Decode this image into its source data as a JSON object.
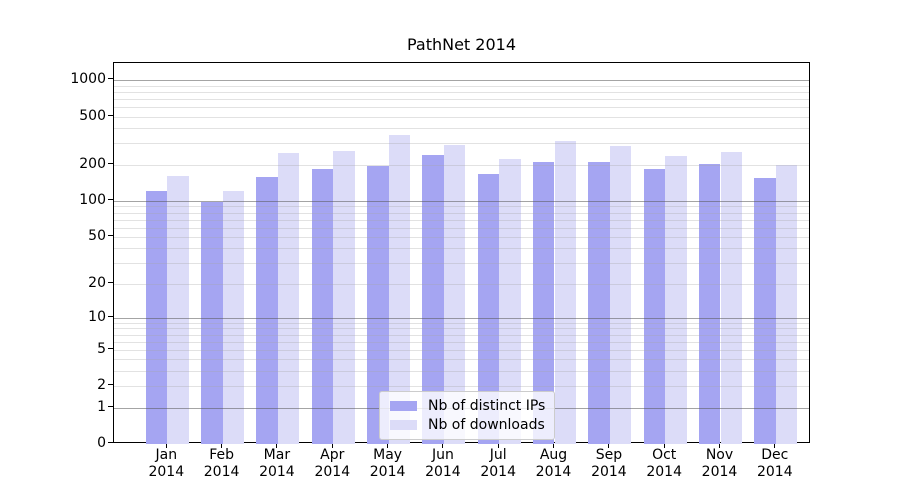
{
  "title": "PathNet 2014",
  "legend": {
    "items": [
      {
        "label": "Nb of distinct IPs",
        "color": "#a5a5f2"
      },
      {
        "label": "Nb of downloads",
        "color": "#dcdcf8"
      }
    ]
  },
  "chart_data": {
    "type": "bar",
    "title": "PathNet 2014",
    "xlabel": "",
    "ylabel": "",
    "scale": "log1p",
    "grid": true,
    "legend_position": "lower-center",
    "ylim": [
      0,
      1385
    ],
    "yticks": [
      1000,
      500,
      200,
      100,
      50,
      20,
      10,
      5,
      2,
      1,
      0
    ],
    "categories": [
      "Jan",
      "Feb",
      "Mar",
      "Apr",
      "May",
      "Jun",
      "Jul",
      "Aug",
      "Sep",
      "Oct",
      "Nov",
      "Dec"
    ],
    "year_label": "2014",
    "series": [
      {
        "name": "Nb of distinct IPs",
        "key": "distinct-ips",
        "color": "#a5a5f2",
        "values": [
          120,
          98,
          159,
          184,
          197,
          239,
          168,
          211,
          210,
          183,
          202,
          156
        ]
      },
      {
        "name": "Nb of downloads",
        "key": "downloads",
        "color": "#dcdcf8",
        "values": [
          161,
          121,
          248,
          262,
          355,
          290,
          223,
          315,
          287,
          237,
          256,
          200
        ]
      }
    ]
  }
}
